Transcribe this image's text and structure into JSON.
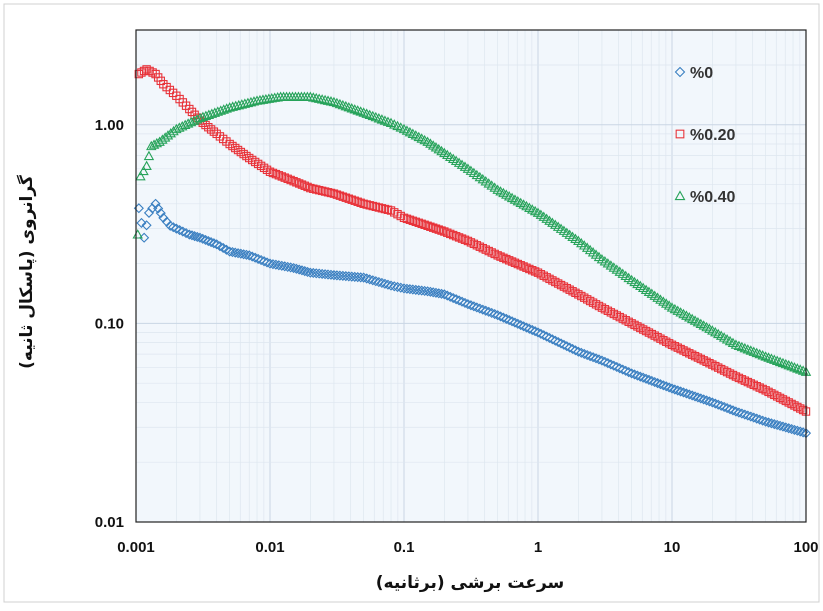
{
  "chart_data": {
    "type": "scatter",
    "x_scale": "log",
    "y_scale": "log",
    "xlim": [
      0.001,
      100
    ],
    "ylim": [
      0.01,
      3
    ],
    "grid": true,
    "legend_position": "top-right",
    "xlabel": "سرعت برشی (برثانیه)",
    "ylabel": "گرانروی (پاسکال ثانیه)",
    "x_ticks": [
      "0.001",
      "0.01",
      "0.1",
      "1",
      "10",
      "100"
    ],
    "y_ticks": [
      "0.01",
      "0.10",
      "1.00"
    ],
    "series": [
      {
        "name": "%0",
        "marker": "diamond",
        "color": "#3a7fc1",
        "points": [
          [
            0.00105,
            0.38
          ],
          [
            0.00115,
            0.27
          ],
          [
            0.00125,
            0.36
          ],
          [
            0.0014,
            0.4
          ],
          [
            0.0016,
            0.34
          ],
          [
            0.0018,
            0.31
          ],
          [
            0.002,
            0.3
          ],
          [
            0.0025,
            0.28
          ],
          [
            0.003,
            0.27
          ],
          [
            0.004,
            0.25
          ],
          [
            0.005,
            0.23
          ],
          [
            0.007,
            0.22
          ],
          [
            0.01,
            0.2
          ],
          [
            0.015,
            0.19
          ],
          [
            0.02,
            0.18
          ],
          [
            0.03,
            0.175
          ],
          [
            0.05,
            0.17
          ],
          [
            0.08,
            0.155
          ],
          [
            0.1,
            0.15
          ],
          [
            0.15,
            0.145
          ],
          [
            0.2,
            0.14
          ],
          [
            0.3,
            0.125
          ],
          [
            0.5,
            0.11
          ],
          [
            1,
            0.09
          ],
          [
            2,
            0.072
          ],
          [
            3,
            0.065
          ],
          [
            5,
            0.056
          ],
          [
            10,
            0.047
          ],
          [
            20,
            0.04
          ],
          [
            30,
            0.036
          ],
          [
            50,
            0.032
          ],
          [
            100,
            0.028
          ]
        ]
      },
      {
        "name": "%0.20",
        "marker": "square",
        "color": "#e8333a",
        "points": [
          [
            0.00105,
            1.8
          ],
          [
            0.0012,
            1.9
          ],
          [
            0.0014,
            1.8
          ],
          [
            0.0016,
            1.6
          ],
          [
            0.002,
            1.4
          ],
          [
            0.0025,
            1.2
          ],
          [
            0.003,
            1.05
          ],
          [
            0.004,
            0.9
          ],
          [
            0.005,
            0.8
          ],
          [
            0.007,
            0.68
          ],
          [
            0.01,
            0.58
          ],
          [
            0.015,
            0.52
          ],
          [
            0.02,
            0.48
          ],
          [
            0.03,
            0.45
          ],
          [
            0.05,
            0.4
          ],
          [
            0.08,
            0.37
          ],
          [
            0.1,
            0.34
          ],
          [
            0.15,
            0.31
          ],
          [
            0.2,
            0.29
          ],
          [
            0.3,
            0.26
          ],
          [
            0.5,
            0.22
          ],
          [
            1,
            0.18
          ],
          [
            2,
            0.14
          ],
          [
            3,
            0.12
          ],
          [
            5,
            0.1
          ],
          [
            10,
            0.078
          ],
          [
            20,
            0.062
          ],
          [
            30,
            0.054
          ],
          [
            50,
            0.046
          ],
          [
            100,
            0.036
          ]
        ]
      },
      {
        "name": "%0.40",
        "marker": "triangle",
        "color": "#27a35a",
        "points": [
          [
            0.00103,
            0.28
          ],
          [
            0.00108,
            0.55
          ],
          [
            0.0012,
            0.62
          ],
          [
            0.0013,
            0.78
          ],
          [
            0.0015,
            0.82
          ],
          [
            0.002,
            0.95
          ],
          [
            0.003,
            1.08
          ],
          [
            0.005,
            1.22
          ],
          [
            0.008,
            1.32
          ],
          [
            0.012,
            1.38
          ],
          [
            0.02,
            1.38
          ],
          [
            0.03,
            1.3
          ],
          [
            0.05,
            1.15
          ],
          [
            0.08,
            1.02
          ],
          [
            0.1,
            0.95
          ],
          [
            0.15,
            0.82
          ],
          [
            0.2,
            0.72
          ],
          [
            0.3,
            0.6
          ],
          [
            0.5,
            0.47
          ],
          [
            1,
            0.36
          ],
          [
            2,
            0.26
          ],
          [
            3,
            0.21
          ],
          [
            5,
            0.165
          ],
          [
            10,
            0.12
          ],
          [
            20,
            0.092
          ],
          [
            30,
            0.078
          ],
          [
            50,
            0.068
          ],
          [
            100,
            0.057
          ]
        ]
      }
    ]
  }
}
